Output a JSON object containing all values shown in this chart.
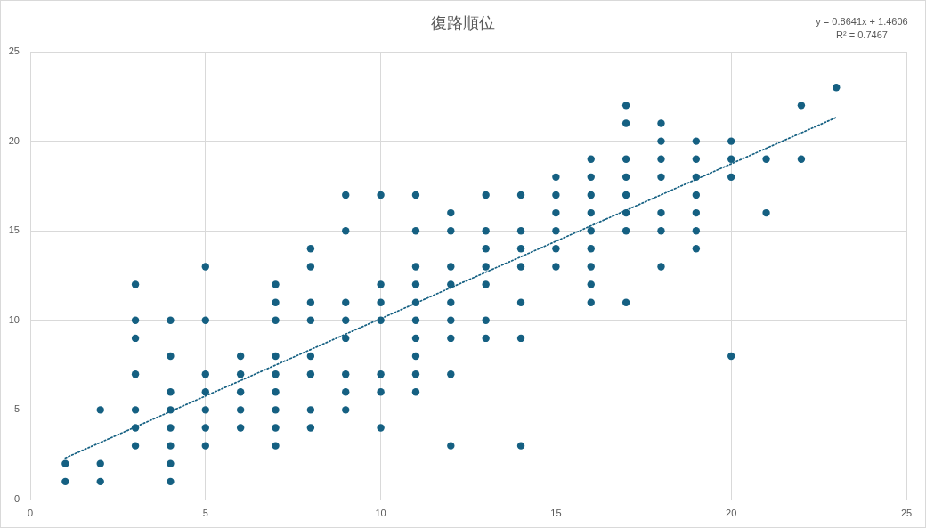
{
  "chart_data": {
    "type": "scatter",
    "title": "復路順位",
    "xlim": [
      0,
      25
    ],
    "xticks": [
      0,
      5,
      10,
      15,
      20,
      25
    ],
    "ylim": [
      0,
      25
    ],
    "yticks": [
      0,
      5,
      10,
      15,
      20,
      25
    ],
    "grid": true,
    "marker": "circle",
    "series": [
      {
        "type": "scatter",
        "color": "#156082",
        "x": [
          1,
          1,
          2,
          2,
          2,
          3,
          3,
          3,
          3,
          3,
          3,
          3,
          4,
          4,
          4,
          4,
          4,
          4,
          4,
          4,
          5,
          5,
          5,
          5,
          5,
          5,
          5,
          6,
          6,
          6,
          6,
          6,
          7,
          7,
          7,
          7,
          7,
          7,
          7,
          7,
          7,
          8,
          8,
          8,
          8,
          8,
          8,
          8,
          8,
          9,
          9,
          9,
          9,
          9,
          9,
          9,
          9,
          10,
          10,
          10,
          10,
          10,
          10,
          10,
          11,
          11,
          11,
          11,
          11,
          11,
          11,
          11,
          11,
          11,
          12,
          12,
          12,
          12,
          12,
          12,
          12,
          12,
          12,
          13,
          13,
          13,
          13,
          13,
          13,
          13,
          14,
          14,
          14,
          14,
          14,
          14,
          14,
          15,
          15,
          15,
          15,
          15,
          15,
          16,
          16,
          16,
          16,
          16,
          16,
          16,
          16,
          16,
          17,
          17,
          17,
          17,
          17,
          17,
          17,
          17,
          18,
          18,
          18,
          18,
          18,
          18,
          18,
          19,
          19,
          19,
          19,
          19,
          19,
          19,
          20,
          20,
          20,
          20,
          21,
          21,
          22,
          22,
          23
        ],
        "values": [
          2,
          1,
          5,
          2,
          1,
          12,
          10,
          9,
          7,
          5,
          4,
          3,
          10,
          8,
          6,
          5,
          4,
          3,
          2,
          1,
          13,
          10,
          7,
          6,
          5,
          4,
          3,
          8,
          7,
          6,
          5,
          4,
          12,
          11,
          10,
          8,
          7,
          6,
          5,
          4,
          3,
          14,
          13,
          11,
          10,
          8,
          7,
          5,
          4,
          17,
          15,
          11,
          10,
          9,
          7,
          6,
          5,
          17,
          12,
          11,
          10,
          7,
          6,
          4,
          17,
          15,
          13,
          12,
          11,
          10,
          9,
          8,
          7,
          6,
          16,
          15,
          13,
          12,
          11,
          10,
          9,
          7,
          3,
          17,
          15,
          14,
          13,
          12,
          10,
          9,
          17,
          15,
          14,
          13,
          11,
          9,
          3,
          18,
          17,
          16,
          15,
          14,
          13,
          19,
          18,
          17,
          16,
          15,
          14,
          13,
          12,
          11,
          22,
          21,
          19,
          18,
          17,
          16,
          15,
          11,
          21,
          20,
          19,
          18,
          16,
          15,
          13,
          20,
          19,
          18,
          17,
          16,
          15,
          14,
          20,
          19,
          18,
          8,
          19,
          16,
          22,
          19,
          23
        ]
      },
      {
        "type": "line",
        "color": "#156082",
        "line_style": "dotted",
        "marker": "none",
        "x": [
          1,
          23
        ],
        "values": [
          2.32,
          21.33
        ]
      }
    ],
    "annotations": [
      "y = 0.8641x + 1.4606",
      "R² = 0.7467"
    ]
  }
}
